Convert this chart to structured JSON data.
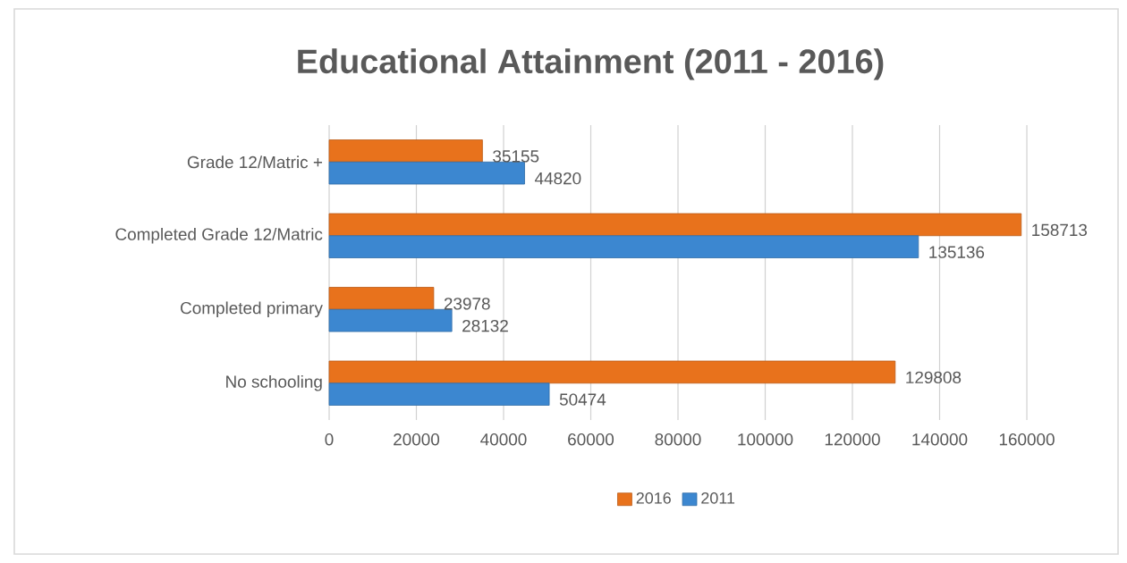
{
  "chart_data": {
    "type": "bar",
    "orientation": "horizontal",
    "title": "Educational Attainment (2011 - 2016)",
    "categories": [
      "Grade 12/Matric +",
      "Completed Grade 12/Matric",
      "Completed primary",
      "No schooling"
    ],
    "series": [
      {
        "name": "2016",
        "color": "#e8721c",
        "values": [
          35155,
          158713,
          23978,
          129808
        ]
      },
      {
        "name": "2011",
        "color": "#3c87d0",
        "values": [
          44820,
          135136,
          28132,
          50474
        ]
      }
    ],
    "xlim": [
      0,
      160000
    ],
    "xticks": [
      0,
      20000,
      40000,
      60000,
      80000,
      100000,
      120000,
      140000,
      160000
    ],
    "data_labels": true,
    "grid": "x",
    "legend": "bottom"
  }
}
